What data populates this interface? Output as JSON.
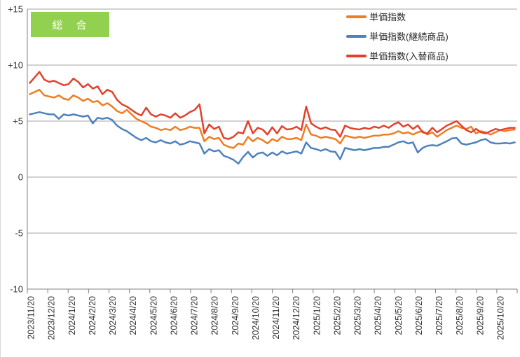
{
  "badge": {
    "label": "総　合",
    "bg_color": "#92D050",
    "text_color": "#FFFFFF"
  },
  "colors": {
    "background": "#FFFFFF",
    "gridline": "#A6A6A6",
    "axis": "#808080",
    "tick_text": "#333333",
    "orange": "#EF7D22",
    "blue": "#4E81BD",
    "red": "#E2412C",
    "green": "#92D050"
  },
  "chart_data": {
    "type": "line",
    "title": "総合",
    "grid": true,
    "legend_position": "top-right",
    "x_unit": "weekly points, monthly tick labels",
    "y_axis": {
      "ylim": [
        -10,
        15
      ],
      "ticks": [
        15,
        10,
        5,
        0,
        -5,
        -10
      ],
      "tick_labels": [
        "+15",
        "+10",
        "+5",
        "0",
        "-5",
        "-10"
      ]
    },
    "x_axis": {
      "tick_labels": [
        "2023/11/20",
        "2023/12/20",
        "2024/1/20",
        "2024/2/20",
        "2024/3/20",
        "2024/4/20",
        "2024/5/20",
        "2024/6/20",
        "2024/7/20",
        "2024/8/20",
        "2024/9/20",
        "2024/10/20",
        "2024/11/20",
        "2024/12/20",
        "2025/1/20",
        "2025/2/20",
        "2025/3/20",
        "2025/4/20",
        "2025/5/20",
        "2025/6/20",
        "2025/7/20",
        "2025/8/20",
        "2025/9/20",
        "2025/10/20"
      ]
    },
    "series": [
      {
        "name": "単価指数",
        "color": "#EF7D22",
        "values": [
          7.4,
          7.6,
          7.8,
          7.3,
          7.2,
          7.1,
          7.3,
          7.0,
          6.9,
          7.3,
          7.1,
          6.8,
          7.0,
          6.7,
          6.8,
          6.4,
          6.6,
          6.3,
          5.9,
          5.7,
          6.0,
          5.6,
          5.2,
          5.0,
          4.8,
          4.5,
          4.4,
          4.2,
          4.3,
          4.2,
          4.5,
          4.2,
          4.3,
          4.5,
          4.4,
          4.4,
          3.2,
          3.6,
          3.4,
          3.5,
          2.9,
          2.7,
          2.6,
          3.0,
          2.9,
          3.6,
          3.2,
          3.5,
          3.3,
          3.0,
          3.4,
          3.2,
          3.6,
          3.4,
          3.4,
          3.5,
          3.3,
          4.7,
          3.8,
          3.7,
          3.5,
          3.6,
          3.5,
          3.4,
          3.0,
          3.7,
          3.6,
          3.5,
          3.6,
          3.5,
          3.6,
          3.7,
          3.7,
          3.8,
          3.8,
          3.9,
          4.1,
          3.9,
          4.0,
          3.8,
          4.0,
          4.1,
          3.8,
          4.0,
          3.6,
          3.9,
          4.2,
          4.4,
          4.6,
          4.4,
          4.3,
          4.5,
          3.9,
          4.1,
          4.0,
          3.8,
          4.0,
          4.2,
          4.1,
          4.2,
          4.25
        ]
      },
      {
        "name": "単価指数(継続商品)",
        "color": "#4E81BD",
        "values": [
          5.6,
          5.7,
          5.8,
          5.7,
          5.6,
          5.6,
          5.2,
          5.6,
          5.5,
          5.6,
          5.5,
          5.4,
          5.5,
          4.8,
          5.3,
          5.2,
          5.3,
          5.1,
          4.6,
          4.3,
          4.1,
          3.8,
          3.5,
          3.3,
          3.5,
          3.2,
          3.1,
          3.3,
          3.1,
          3.0,
          3.2,
          2.9,
          3.0,
          3.2,
          3.1,
          3.0,
          2.1,
          2.5,
          2.3,
          2.4,
          1.9,
          1.75,
          1.55,
          1.2,
          1.8,
          2.25,
          1.75,
          2.1,
          2.2,
          1.9,
          2.2,
          1.95,
          2.3,
          2.1,
          2.2,
          2.3,
          2.1,
          3.1,
          2.6,
          2.5,
          2.35,
          2.5,
          2.3,
          2.25,
          1.6,
          2.6,
          2.5,
          2.4,
          2.5,
          2.4,
          2.5,
          2.6,
          2.6,
          2.7,
          2.7,
          2.9,
          3.1,
          3.2,
          3.0,
          3.1,
          2.2,
          2.6,
          2.8,
          2.85,
          2.8,
          3.0,
          3.2,
          3.45,
          3.5,
          3.0,
          2.9,
          3.0,
          3.1,
          3.3,
          3.4,
          3.1,
          3.0,
          3.0,
          3.05,
          3.0,
          3.1
        ]
      },
      {
        "name": "単価指数(入替商品)",
        "color": "#E2412C",
        "values": [
          8.4,
          8.9,
          9.4,
          8.7,
          8.5,
          8.6,
          8.4,
          8.2,
          8.3,
          8.8,
          8.5,
          8.0,
          8.3,
          7.9,
          8.1,
          7.4,
          7.8,
          7.6,
          6.9,
          6.5,
          6.3,
          6.0,
          5.7,
          5.5,
          6.2,
          5.6,
          5.4,
          5.6,
          5.5,
          5.3,
          5.7,
          5.3,
          5.5,
          5.8,
          6.0,
          6.5,
          3.9,
          4.7,
          4.3,
          4.5,
          3.5,
          3.4,
          3.6,
          4.0,
          3.9,
          5.0,
          3.9,
          4.4,
          4.25,
          3.8,
          4.45,
          3.9,
          4.55,
          4.25,
          4.3,
          4.5,
          4.2,
          6.3,
          4.8,
          4.5,
          4.3,
          4.45,
          4.25,
          4.2,
          3.6,
          4.6,
          4.4,
          4.3,
          4.25,
          4.4,
          4.3,
          4.5,
          4.4,
          4.6,
          4.4,
          4.7,
          4.9,
          4.5,
          4.7,
          4.3,
          4.6,
          4.0,
          3.9,
          4.4,
          4.0,
          4.3,
          4.6,
          4.8,
          5.0,
          4.6,
          4.2,
          4.0,
          4.3,
          4.0,
          3.9,
          4.1,
          4.3,
          4.2,
          4.3,
          4.4,
          4.4
        ]
      }
    ]
  }
}
